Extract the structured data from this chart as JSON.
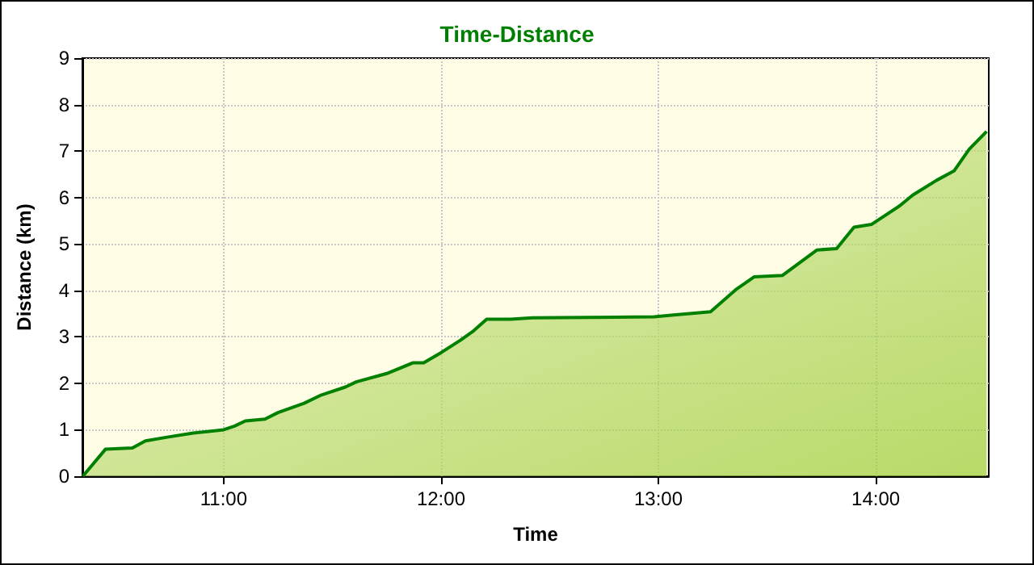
{
  "chart_data": {
    "type": "area",
    "title": "Time-Distance",
    "xlabel": "Time",
    "ylabel": "Distance (km)",
    "x": [
      10.352,
      10.456,
      10.58,
      10.64,
      10.74,
      10.86,
      11.0,
      11.05,
      11.1,
      11.19,
      11.25,
      11.37,
      11.45,
      11.56,
      11.61,
      11.75,
      11.87,
      11.92,
      12.0,
      12.09,
      12.15,
      12.21,
      12.32,
      12.42,
      12.98,
      13.07,
      13.24,
      13.36,
      13.44,
      13.57,
      13.73,
      13.82,
      13.9,
      13.98,
      14.11,
      14.17,
      14.28,
      14.36,
      14.43,
      14.51
    ],
    "series": [
      {
        "color": "#008000",
        "values": [
          0,
          0.58,
          0.61,
          0.76,
          0.84,
          0.93,
          1.0,
          1.08,
          1.19,
          1.23,
          1.37,
          1.57,
          1.75,
          1.92,
          2.03,
          2.21,
          2.44,
          2.44,
          2.66,
          2.93,
          3.13,
          3.38,
          3.38,
          3.41,
          3.43,
          3.47,
          3.54,
          4.03,
          4.29,
          4.32,
          4.87,
          4.9,
          5.36,
          5.42,
          5.82,
          6.05,
          6.37,
          6.57,
          7.04,
          7.42
        ]
      }
    ],
    "xlim": [
      10.35,
      14.52
    ],
    "xticks": [
      {
        "value": 11,
        "label": "11:00"
      },
      {
        "value": 12,
        "label": "12:00"
      },
      {
        "value": 13,
        "label": "13:00"
      },
      {
        "value": 14,
        "label": "14:00"
      }
    ],
    "ylim": [
      0,
      9
    ],
    "yticks": [
      0,
      1,
      2,
      3,
      4,
      5,
      6,
      7,
      8,
      9
    ],
    "grid": true,
    "marker": "none",
    "line_style": "solid"
  }
}
